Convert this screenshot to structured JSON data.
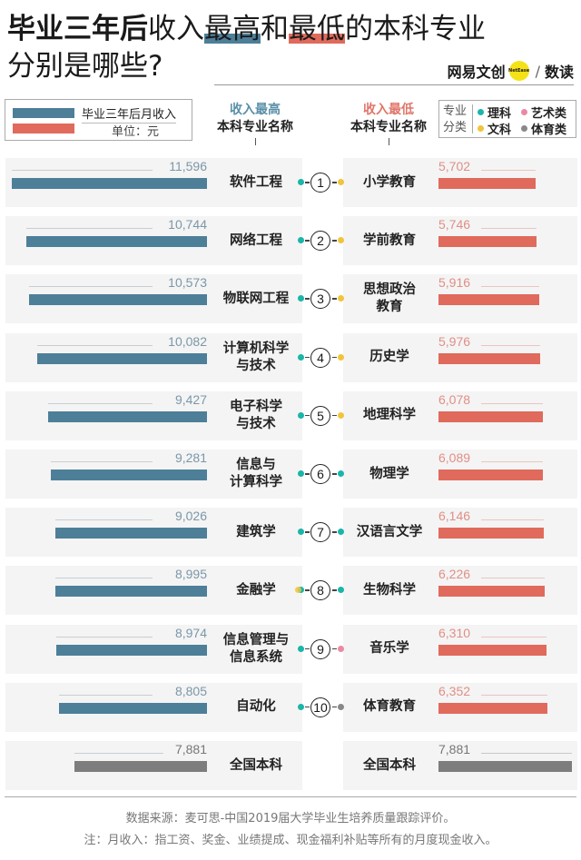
{
  "header": {
    "title_bold": "毕业三年后",
    "title_mid": "收入",
    "title_hl_high": "最高",
    "title_and": "和",
    "title_hl_low": "最低",
    "title_end": "的本科专业",
    "title_line2": "分别是哪些?",
    "brand_left": "网易文创",
    "brand_dot": "NetEase",
    "brand_slash": "/",
    "brand_right": "数读"
  },
  "legend": {
    "series_label": "毕业三年后月收入",
    "unit_label": "单位：元"
  },
  "columns": {
    "left_top": "收入最高",
    "left_sub": "本科专业名称",
    "right_top": "收入最低",
    "right_sub": "本科专业名称"
  },
  "category_legend": {
    "label_line1": "专业",
    "label_line2": "分类",
    "items": [
      {
        "name": "理科",
        "color": "#1bb5a9"
      },
      {
        "name": "艺术类",
        "color": "#e98aa4"
      },
      {
        "name": "文科",
        "color": "#f0c43c"
      },
      {
        "name": "体育类",
        "color": "#888888"
      }
    ]
  },
  "colors": {
    "high_bar": "#4d7f99",
    "low_bar": "#e06a5c",
    "national_bar": "#7d7d7d",
    "science": "#1bb5a9",
    "liberal_arts": "#f0c43c",
    "art": "#e98aa4",
    "sports": "#888888"
  },
  "chart_data": {
    "type": "bar",
    "title": "毕业三年后收入最高和最低的本科专业分别是哪些?",
    "unit": "元",
    "ylabel": "毕业三年后月收入",
    "series": [
      {
        "name": "收入最高",
        "categories": [
          "软件工程",
          "网络工程",
          "物联网工程",
          "计算机科学与技术",
          "电子科学与技术",
          "信息与计算科学",
          "建筑学",
          "金融学",
          "信息管理与信息系统",
          "自动化"
        ],
        "values": [
          11596,
          10744,
          10573,
          10082,
          9427,
          9281,
          9026,
          8995,
          8974,
          8805
        ],
        "category_type": [
          "理科",
          "理科",
          "理科",
          "理科",
          "理科",
          "理科",
          "理科",
          "理科/文科",
          "理科",
          "理科"
        ]
      },
      {
        "name": "收入最低",
        "categories": [
          "小学教育",
          "学前教育",
          "思想政治教育",
          "历史学",
          "地理科学",
          "物理学",
          "汉语言文学",
          "生物科学",
          "音乐学",
          "体育教育"
        ],
        "values": [
          5702,
          5746,
          5916,
          5976,
          6078,
          6089,
          6146,
          6226,
          6310,
          6352
        ],
        "category_type": [
          "文科",
          "文科",
          "文科",
          "文科",
          "文科",
          "理科",
          "理科",
          "理科",
          "艺术类",
          "体育类"
        ]
      }
    ],
    "reference": {
      "name": "全国本科",
      "value": 7881
    }
  },
  "rows": [
    {
      "rank": "1",
      "high": {
        "name": "软件工程",
        "value": "11,596",
        "v": 11596,
        "dot": "#1bb5a9"
      },
      "low": {
        "name": "小学教育",
        "value": "5,702",
        "v": 5702,
        "dot": "#f0c43c"
      }
    },
    {
      "rank": "2",
      "high": {
        "name": "网络工程",
        "value": "10,744",
        "v": 10744,
        "dot": "#1bb5a9"
      },
      "low": {
        "name": "学前教育",
        "value": "5,746",
        "v": 5746,
        "dot": "#f0c43c"
      }
    },
    {
      "rank": "3",
      "high": {
        "name": "物联网工程",
        "value": "10,573",
        "v": 10573,
        "dot": "#1bb5a9"
      },
      "low": {
        "name": "思想政治\n教育",
        "value": "5,916",
        "v": 5916,
        "dot": "#f0c43c"
      }
    },
    {
      "rank": "4",
      "high": {
        "name": "计算机科学\n与技术",
        "value": "10,082",
        "v": 10082,
        "dot": "#1bb5a9"
      },
      "low": {
        "name": "历史学",
        "value": "5,976",
        "v": 5976,
        "dot": "#f0c43c"
      }
    },
    {
      "rank": "5",
      "high": {
        "name": "电子科学\n与技术",
        "value": "9,427",
        "v": 9427,
        "dot": "#1bb5a9"
      },
      "low": {
        "name": "地理科学",
        "value": "6,078",
        "v": 6078,
        "dot": "#f0c43c"
      }
    },
    {
      "rank": "6",
      "high": {
        "name": "信息与\n计算科学",
        "value": "9,281",
        "v": 9281,
        "dot": "#1bb5a9"
      },
      "low": {
        "name": "物理学",
        "value": "6,089",
        "v": 6089,
        "dot": "#1bb5a9"
      }
    },
    {
      "rank": "7",
      "high": {
        "name": "建筑学",
        "value": "9,026",
        "v": 9026,
        "dot": "#1bb5a9"
      },
      "low": {
        "name": "汉语言文学",
        "value": "6,146",
        "v": 6146,
        "dot": "#1bb5a9"
      }
    },
    {
      "rank": "8",
      "high": {
        "name": "金融学",
        "value": "8,995",
        "v": 8995,
        "dot": "#1bb5a9",
        "dot2": "#f0c43c"
      },
      "low": {
        "name": "生物科学",
        "value": "6,226",
        "v": 6226,
        "dot": "#1bb5a9"
      }
    },
    {
      "rank": "9",
      "high": {
        "name": "信息管理与\n信息系统",
        "value": "8,974",
        "v": 8974,
        "dot": "#1bb5a9"
      },
      "low": {
        "name": "音乐学",
        "value": "6,310",
        "v": 6310,
        "dot": "#e98aa4"
      }
    },
    {
      "rank": "10",
      "high": {
        "name": "自动化",
        "value": "8,805",
        "v": 8805,
        "dot": "#1bb5a9"
      },
      "low": {
        "name": "体育教育",
        "value": "6,352",
        "v": 6352,
        "dot": "#888888"
      }
    }
  ],
  "national": {
    "name": "全国本科",
    "value": "7,881",
    "v": 7881
  },
  "footer": {
    "source": "数据来源：麦可思-中国2019届大学毕业生培养质量跟踪评价。",
    "note": "注：月收入：指工资、奖金、业绩提成、现金福利补贴等所有的月度现金收入。"
  }
}
